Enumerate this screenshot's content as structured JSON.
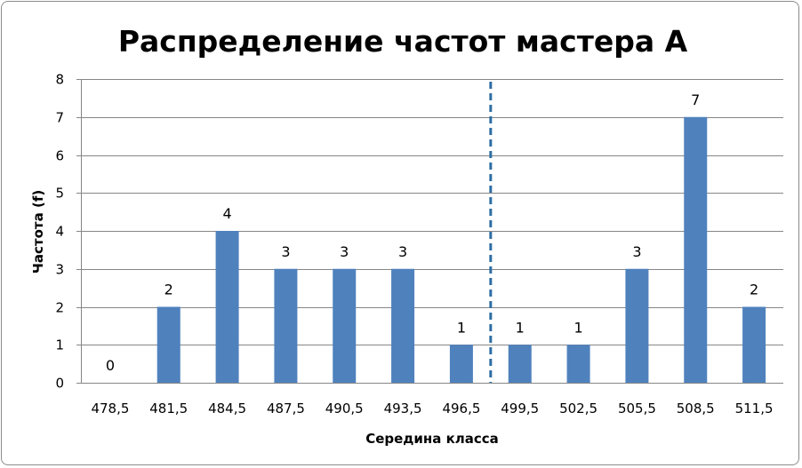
{
  "chart_data": {
    "type": "bar",
    "title": "Распределение частот мастера А",
    "xlabel": "Середина класса",
    "ylabel": "Частота (f)",
    "categories": [
      "478,5",
      "481,5",
      "484,5",
      "487,5",
      "490,5",
      "493,5",
      "496,5",
      "499,5",
      "502,5",
      "505,5",
      "508,5",
      "511,5"
    ],
    "values": [
      0,
      2,
      4,
      3,
      3,
      3,
      1,
      1,
      1,
      3,
      7,
      2
    ],
    "ylim": [
      0,
      8
    ],
    "yticks": [
      "0",
      "1",
      "2",
      "3",
      "4",
      "5",
      "6",
      "7",
      "8"
    ],
    "grid": true,
    "legend": "none",
    "data_labels": true,
    "bar_color": "#4f81bd",
    "reference_line": {
      "style": "dashed",
      "between_categories": [
        "496,5",
        "499,5"
      ],
      "color": "#2e6da4"
    }
  }
}
